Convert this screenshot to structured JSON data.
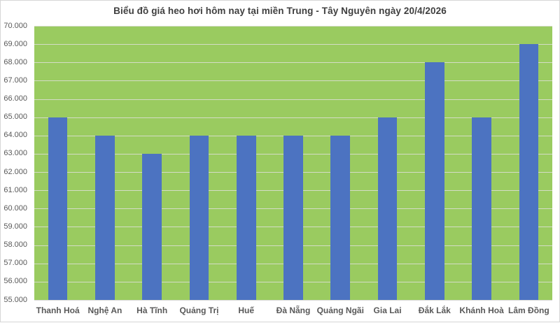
{
  "chart_data": {
    "type": "bar",
    "title": "Biểu đồ giá heo hơi hôm nay tại miền Trung - Tây Nguyên ngày 20/4/2026",
    "categories": [
      "Thanh Hoá",
      "Nghệ An",
      "Hà Tĩnh",
      "Quảng Trị",
      "Huế",
      "Đà Nẵng",
      "Quảng Ngãi",
      "Gia Lai",
      "Đắk Lắk",
      "Khánh Hoà",
      "Lâm Đồng"
    ],
    "values": [
      65000,
      64000,
      63000,
      64000,
      64000,
      64000,
      64000,
      65000,
      68000,
      65000,
      69000
    ],
    "xlabel": "",
    "ylabel": "",
    "ylim": [
      55000,
      70000
    ],
    "ytick_step": 1000,
    "y_ticks": [
      {
        "value": 55000,
        "label": "55.000"
      },
      {
        "value": 56000,
        "label": "56.000"
      },
      {
        "value": 57000,
        "label": "57.000"
      },
      {
        "value": 58000,
        "label": "58.000"
      },
      {
        "value": 59000,
        "label": "59.000"
      },
      {
        "value": 60000,
        "label": "60.000"
      },
      {
        "value": 61000,
        "label": "61.000"
      },
      {
        "value": 62000,
        "label": "62.000"
      },
      {
        "value": 63000,
        "label": "63.000"
      },
      {
        "value": 64000,
        "label": "64.000"
      },
      {
        "value": 65000,
        "label": "65.000"
      },
      {
        "value": 66000,
        "label": "66.000"
      },
      {
        "value": 67000,
        "label": "67.000"
      },
      {
        "value": 68000,
        "label": "68.000"
      },
      {
        "value": 69000,
        "label": "69.000"
      },
      {
        "value": 70000,
        "label": "70.000"
      }
    ],
    "grid": true,
    "legend": false,
    "colors": {
      "bar": "#4c73c1",
      "plot_background": "#9acb60",
      "gridline": "#d4dcc6",
      "title_text": "#3f3f3f",
      "axis_text": "#595959",
      "frame_border": "#d6d6d6"
    }
  }
}
